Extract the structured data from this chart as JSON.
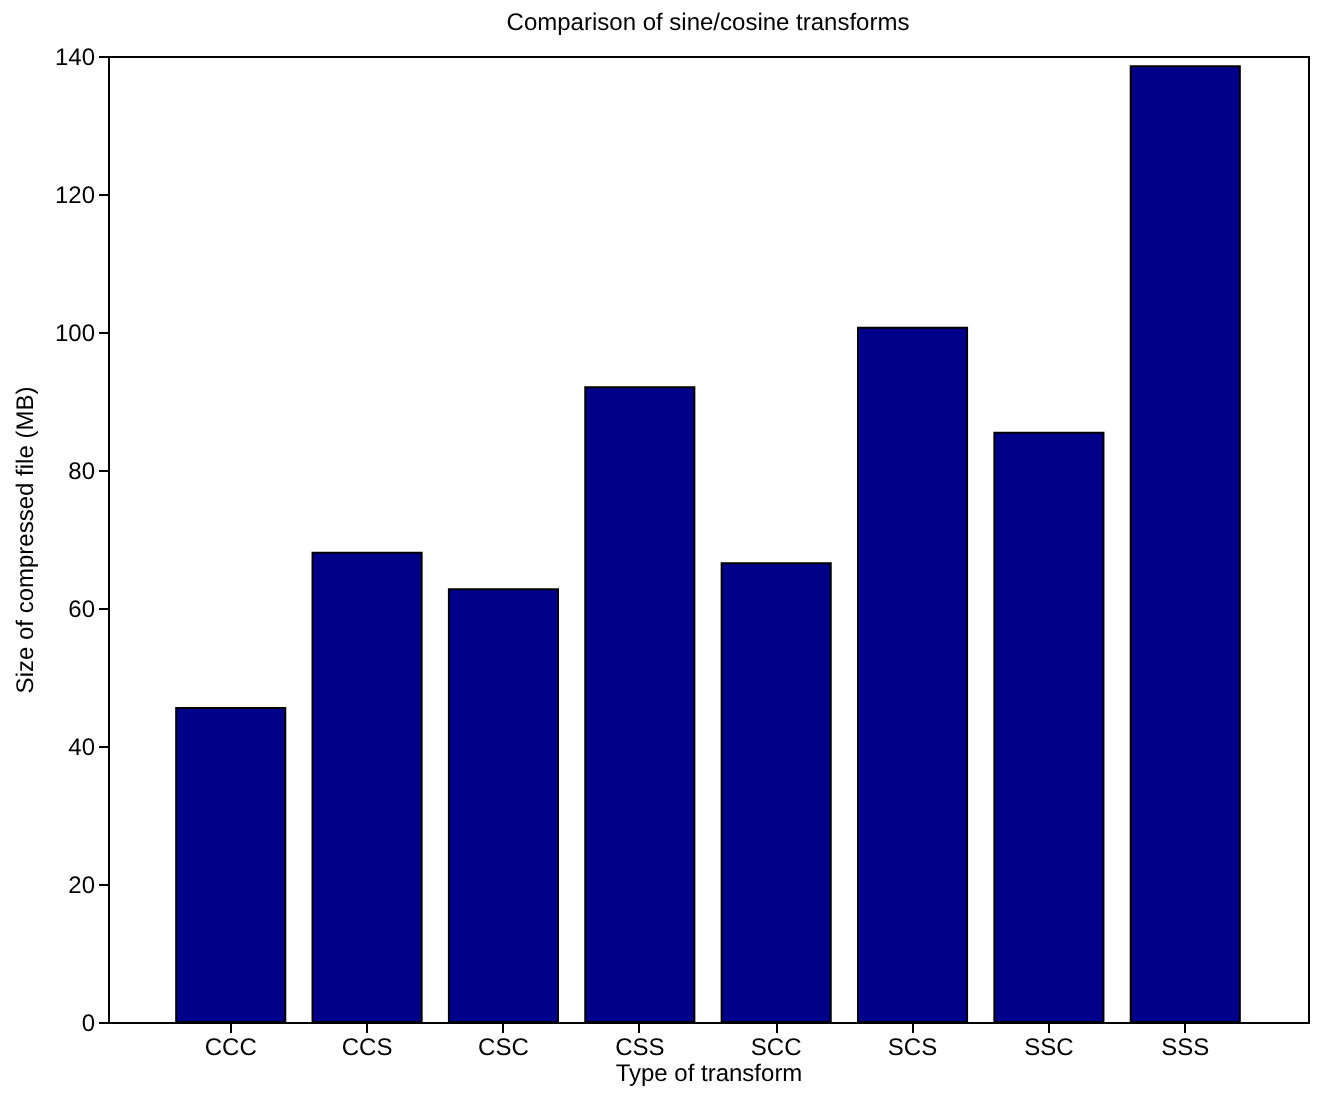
{
  "chart_data": {
    "type": "bar",
    "title": "Comparison of sine/cosine transforms",
    "xlabel": "Type of transform",
    "ylabel": "Size of compressed file (MB)",
    "categories": [
      "CCC",
      "CCS",
      "CSC",
      "CSS",
      "SCC",
      "SCS",
      "SSC",
      "SSS"
    ],
    "values": [
      45.5,
      68.0,
      62.7,
      92.0,
      66.5,
      100.6,
      85.4,
      138.5
    ],
    "color": "#00008b",
    "ylim": [
      0,
      140
    ],
    "yticks": [
      0,
      20,
      40,
      60,
      80,
      100,
      120,
      140
    ],
    "grid": false
  }
}
